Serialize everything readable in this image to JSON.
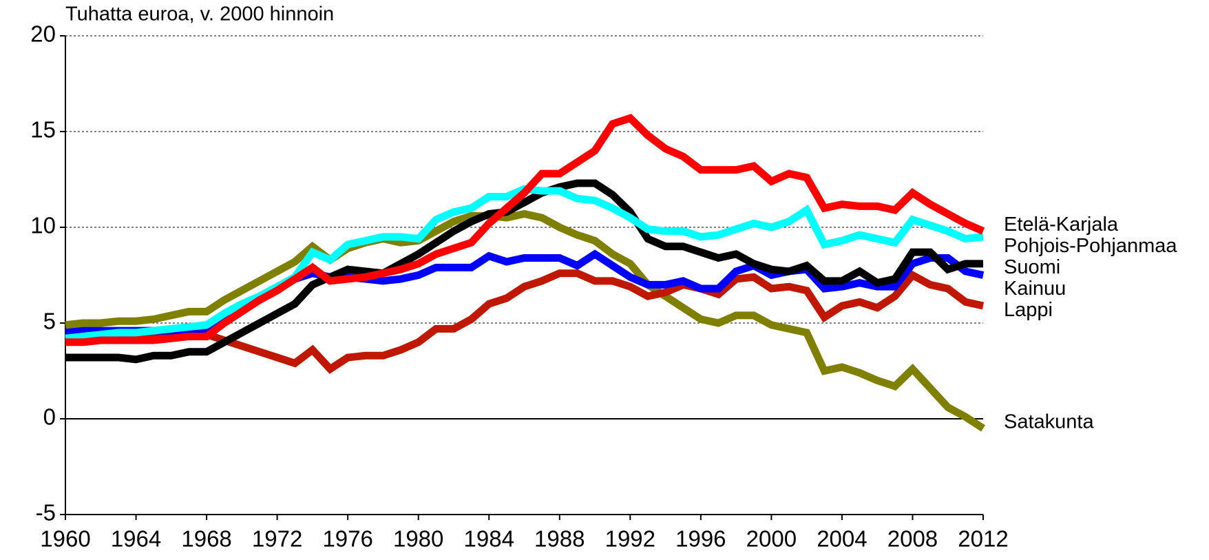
{
  "chart_data": {
    "type": "line",
    "y_label": "Tuhatta euroa, v. 2000 hinnoin",
    "x": [
      1960,
      1961,
      1962,
      1963,
      1964,
      1965,
      1966,
      1967,
      1968,
      1969,
      1970,
      1971,
      1972,
      1973,
      1974,
      1975,
      1976,
      1977,
      1978,
      1979,
      1980,
      1981,
      1982,
      1983,
      1984,
      1985,
      1986,
      1987,
      1988,
      1989,
      1990,
      1991,
      1992,
      1993,
      1994,
      1995,
      1996,
      1997,
      1998,
      1999,
      2000,
      2001,
      2002,
      2003,
      2004,
      2005,
      2006,
      2007,
      2008,
      2009,
      2010,
      2011,
      2012
    ],
    "xlim": [
      1960,
      2012
    ],
    "xticks": [
      1960,
      1964,
      1968,
      1972,
      1976,
      1980,
      1984,
      1988,
      1992,
      1996,
      2000,
      2004,
      2008,
      2012
    ],
    "ylim": [
      -5,
      20
    ],
    "yticks": [
      -5,
      0,
      5,
      10,
      15,
      20
    ],
    "grid": true,
    "series": [
      {
        "name": "Etelä-Karjala",
        "color": "#ff0000",
        "values": [
          4.0,
          4.0,
          4.1,
          4.1,
          4.1,
          4.1,
          4.2,
          4.3,
          4.3,
          5.0,
          5.6,
          6.2,
          6.7,
          7.3,
          7.9,
          7.2,
          7.3,
          7.4,
          7.6,
          7.8,
          8.1,
          8.6,
          8.9,
          9.2,
          10.2,
          11.0,
          11.8,
          12.8,
          12.8,
          13.4,
          14.0,
          15.4,
          15.7,
          14.8,
          14.1,
          13.7,
          13.0,
          13.0,
          13.0,
          13.2,
          12.4,
          12.8,
          12.6,
          11.0,
          11.2,
          11.1,
          11.1,
          10.9,
          11.8,
          11.2,
          10.7,
          10.2,
          9.8
        ]
      },
      {
        "name": "Pohjois-Pohjanmaa",
        "color": "#00ffff",
        "values": [
          4.2,
          4.3,
          4.4,
          4.5,
          4.5,
          4.6,
          4.7,
          4.8,
          4.9,
          5.5,
          6.0,
          6.4,
          6.9,
          7.4,
          8.7,
          8.3,
          9.1,
          9.3,
          9.5,
          9.5,
          9.4,
          10.4,
          10.8,
          11.0,
          11.6,
          11.6,
          12.0,
          11.9,
          11.9,
          11.5,
          11.4,
          11.0,
          10.5,
          9.9,
          9.8,
          9.8,
          9.5,
          9.6,
          9.9,
          10.2,
          10.0,
          10.3,
          10.9,
          9.1,
          9.3,
          9.6,
          9.4,
          9.2,
          10.4,
          10.1,
          9.8,
          9.4,
          9.5
        ]
      },
      {
        "name": "Suomi",
        "color": "#000000",
        "values": [
          3.2,
          3.2,
          3.2,
          3.2,
          3.1,
          3.3,
          3.3,
          3.5,
          3.5,
          4.0,
          4.5,
          5.0,
          5.5,
          6.0,
          7.0,
          7.4,
          7.8,
          7.7,
          7.6,
          8.1,
          8.6,
          9.2,
          9.8,
          10.3,
          10.7,
          10.8,
          11.3,
          11.8,
          12.1,
          12.3,
          12.3,
          11.7,
          10.8,
          9.4,
          9.0,
          9.0,
          8.7,
          8.4,
          8.6,
          8.1,
          7.8,
          7.7,
          8.0,
          7.2,
          7.2,
          7.7,
          7.1,
          7.3,
          8.7,
          8.7,
          7.8,
          8.1,
          8.1
        ]
      },
      {
        "name": "Kainuu",
        "color": "#0000ff",
        "values": [
          4.5,
          4.6,
          4.6,
          4.6,
          4.6,
          4.6,
          4.6,
          4.6,
          4.7,
          5.3,
          5.8,
          6.3,
          6.8,
          7.3,
          7.6,
          7.4,
          7.4,
          7.3,
          7.2,
          7.3,
          7.5,
          7.9,
          7.9,
          7.9,
          8.5,
          8.2,
          8.4,
          8.4,
          8.4,
          8.0,
          8.6,
          8.0,
          7.4,
          7.0,
          7.0,
          7.2,
          6.8,
          6.8,
          7.7,
          8.0,
          7.5,
          7.7,
          7.8,
          6.8,
          6.9,
          7.1,
          6.9,
          6.9,
          8.1,
          8.4,
          8.4,
          7.7,
          7.5
        ]
      },
      {
        "name": "Lappi",
        "color": "#c01800",
        "values": [
          4.1,
          4.1,
          4.1,
          4.2,
          4.2,
          4.3,
          4.3,
          4.4,
          4.4,
          4.1,
          3.8,
          3.5,
          3.2,
          2.9,
          3.6,
          2.6,
          3.2,
          3.3,
          3.3,
          3.6,
          4.0,
          4.7,
          4.7,
          5.2,
          6.0,
          6.3,
          6.9,
          7.2,
          7.6,
          7.6,
          7.2,
          7.2,
          6.9,
          6.4,
          6.6,
          7.0,
          6.8,
          6.5,
          7.3,
          7.4,
          6.8,
          6.9,
          6.7,
          5.3,
          5.9,
          6.1,
          5.8,
          6.4,
          7.5,
          7.0,
          6.8,
          6.1,
          5.9
        ]
      },
      {
        "name": "Satakunta",
        "color": "#808000",
        "values": [
          4.9,
          5.0,
          5.0,
          5.1,
          5.1,
          5.2,
          5.4,
          5.6,
          5.6,
          6.2,
          6.7,
          7.2,
          7.7,
          8.2,
          9.0,
          8.3,
          8.9,
          9.2,
          9.4,
          9.2,
          9.3,
          9.8,
          10.3,
          10.6,
          10.6,
          10.5,
          10.7,
          10.5,
          10.0,
          9.6,
          9.3,
          8.6,
          8.1,
          7.0,
          6.4,
          5.8,
          5.2,
          5.0,
          5.4,
          5.4,
          4.9,
          4.7,
          4.5,
          2.5,
          2.7,
          2.4,
          2.0,
          1.7,
          2.6,
          1.6,
          0.6,
          0.1,
          -0.5
        ]
      }
    ]
  }
}
